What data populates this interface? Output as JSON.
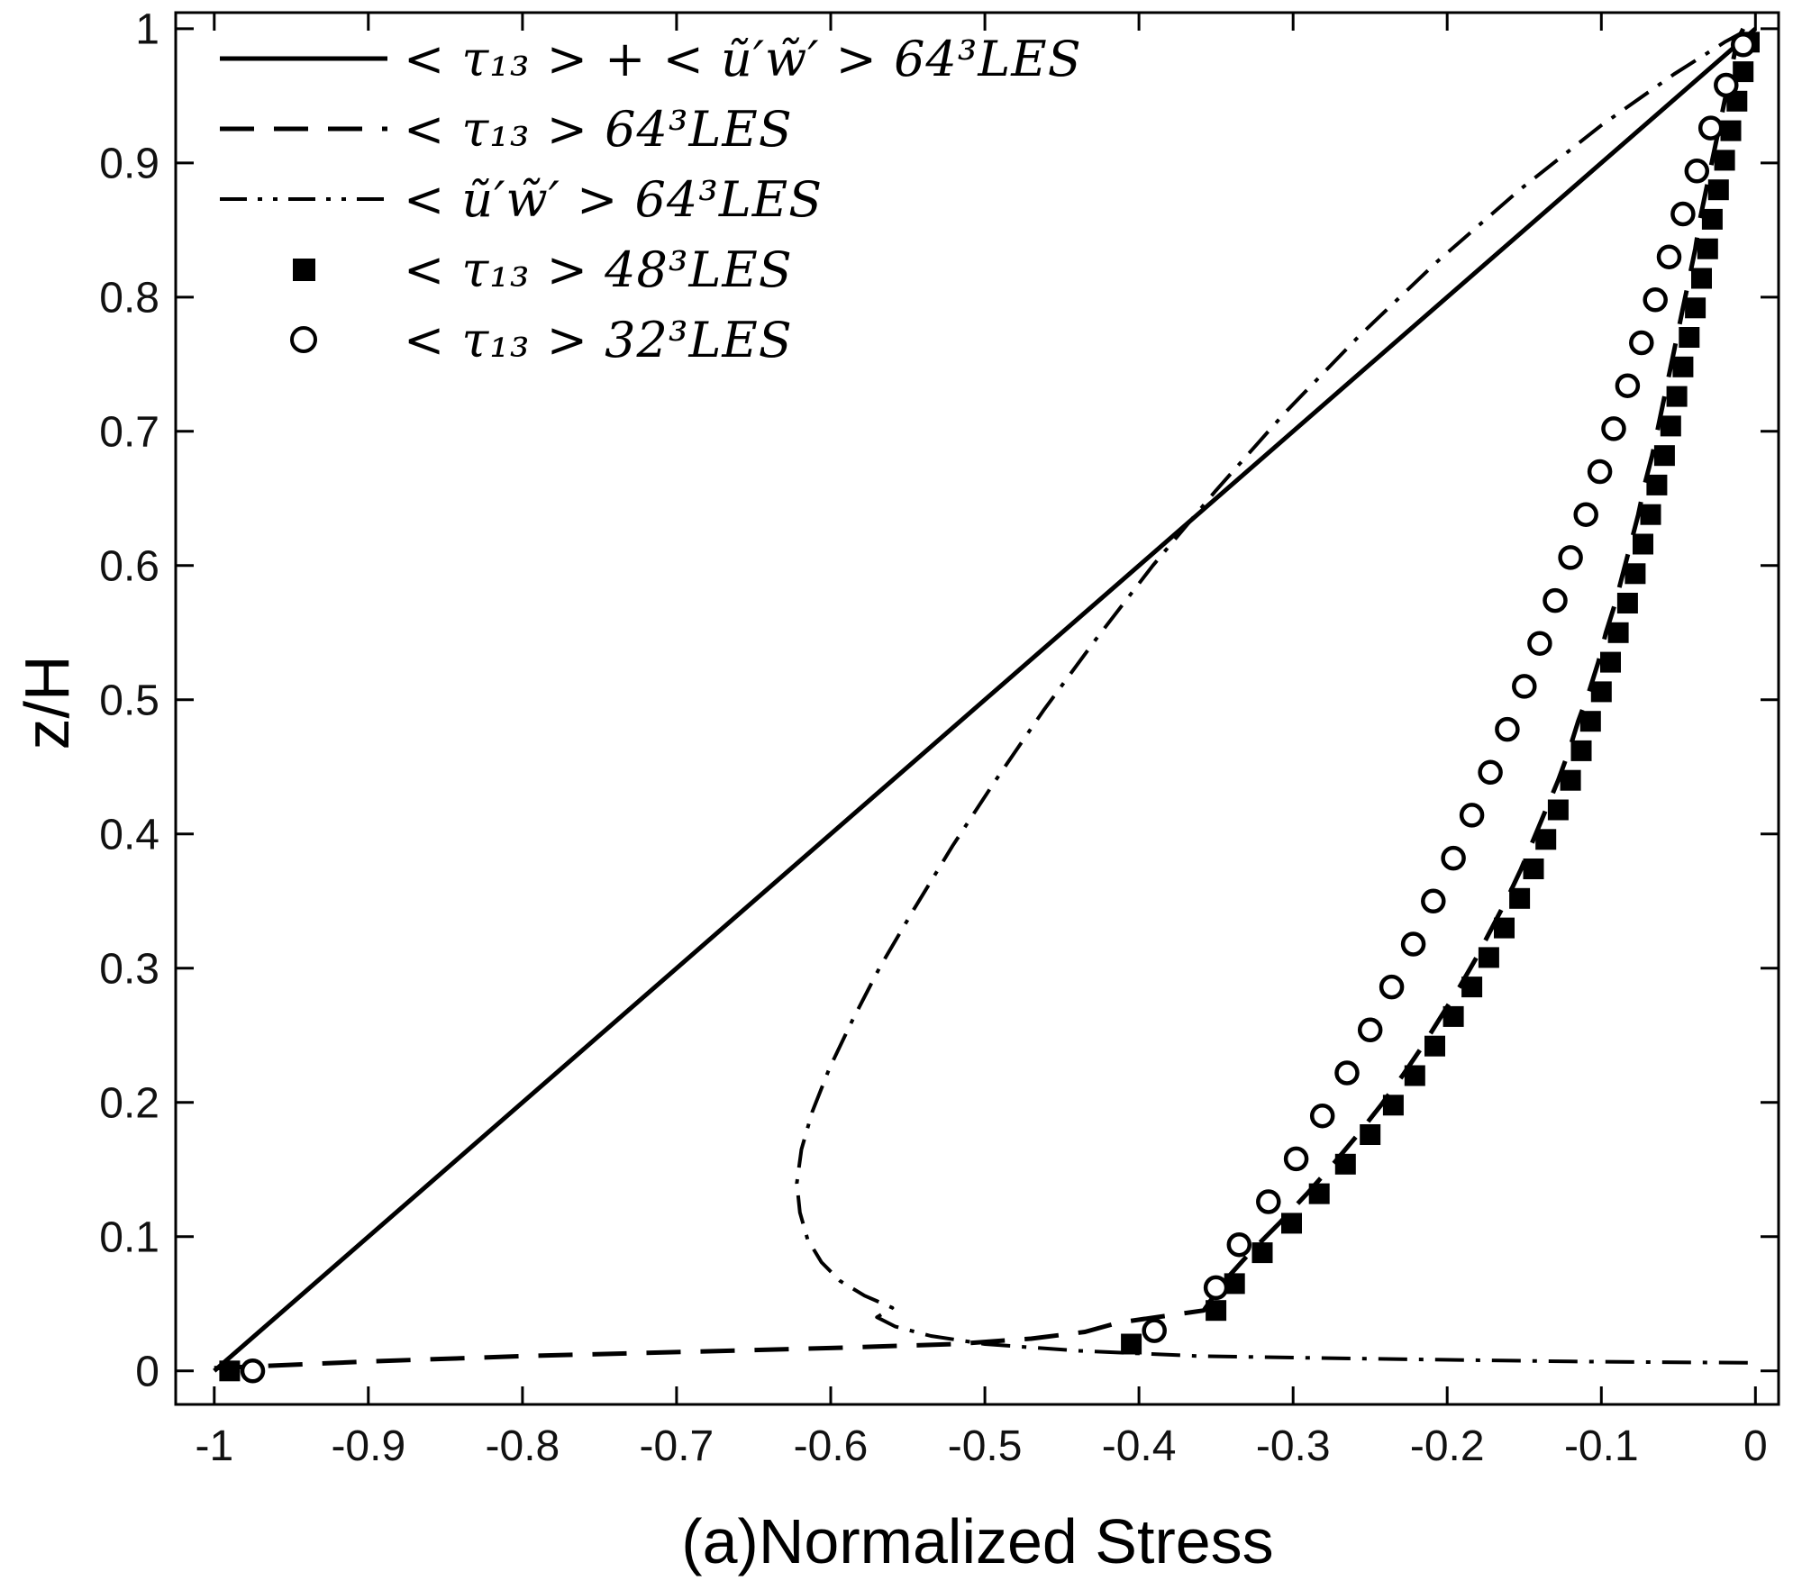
{
  "chart_data": {
    "type": "line",
    "title": "",
    "xlabel": "(a)Normalized Stress",
    "ylabel": "z/H",
    "xlim": [
      -1.025,
      0.015
    ],
    "ylim": [
      -0.025,
      1.012
    ],
    "grid": false,
    "legend_position": "top-left",
    "xticks": [
      -1,
      -0.9,
      -0.8,
      -0.7,
      -0.6,
      -0.5,
      -0.4,
      -0.3,
      -0.2,
      -0.1,
      0
    ],
    "xtick_labels": [
      "-1",
      "-0.9",
      "-0.8",
      "-0.7",
      "-0.6",
      "-0.5",
      "-0.4",
      "-0.3",
      "-0.2",
      "-0.1",
      "0"
    ],
    "yticks": [
      0,
      0.1,
      0.2,
      0.3,
      0.4,
      0.5,
      0.6,
      0.7,
      0.8,
      0.9,
      1
    ],
    "ytick_labels": [
      "0",
      "0.1",
      "0.2",
      "0.3",
      "0.4",
      "0.5",
      "0.6",
      "0.7",
      "0.8",
      "0.9",
      "1"
    ],
    "series": [
      {
        "name": "total-stress-64",
        "label": "< τ₁₃ > + < ũ′w̃′ > 64³LES",
        "style": "solid",
        "points": [
          [
            -1.0,
            0.0
          ],
          [
            -0.75,
            0.25
          ],
          [
            -0.5,
            0.5
          ],
          [
            -0.25,
            0.75
          ],
          [
            0.0,
            1.0
          ]
        ]
      },
      {
        "name": "sgs-stress-64",
        "label": "< τ₁₃ > 64³LES",
        "style": "dashed",
        "points": [
          [
            -1.0,
            0.002
          ],
          [
            -0.9,
            0.007
          ],
          [
            -0.8,
            0.011
          ],
          [
            -0.7,
            0.014
          ],
          [
            -0.6,
            0.017
          ],
          [
            -0.52,
            0.02
          ],
          [
            -0.47,
            0.024
          ],
          [
            -0.435,
            0.029
          ],
          [
            -0.413,
            0.036
          ],
          [
            -0.358,
            0.045
          ],
          [
            -0.346,
            0.065
          ],
          [
            -0.328,
            0.088
          ],
          [
            -0.309,
            0.11
          ],
          [
            -0.291,
            0.132
          ],
          [
            -0.274,
            0.154
          ],
          [
            -0.258,
            0.176
          ],
          [
            -0.243,
            0.198
          ],
          [
            -0.229,
            0.22
          ],
          [
            -0.216,
            0.242
          ],
          [
            -0.204,
            0.264
          ],
          [
            -0.192,
            0.286
          ],
          [
            -0.181,
            0.308
          ],
          [
            -0.171,
            0.33
          ],
          [
            -0.161,
            0.352
          ],
          [
            -0.152,
            0.374
          ],
          [
            -0.144,
            0.396
          ],
          [
            -0.136,
            0.418
          ],
          [
            -0.128,
            0.44
          ],
          [
            -0.121,
            0.462
          ],
          [
            -0.115,
            0.484
          ],
          [
            -0.108,
            0.506
          ],
          [
            -0.102,
            0.528
          ],
          [
            -0.097,
            0.55
          ],
          [
            -0.091,
            0.572
          ],
          [
            -0.086,
            0.594
          ],
          [
            -0.081,
            0.616
          ],
          [
            -0.076,
            0.638
          ],
          [
            -0.072,
            0.66
          ],
          [
            -0.067,
            0.682
          ],
          [
            -0.063,
            0.704
          ],
          [
            -0.059,
            0.726
          ],
          [
            -0.055,
            0.748
          ],
          [
            -0.051,
            0.77
          ],
          [
            -0.047,
            0.792
          ],
          [
            -0.043,
            0.814
          ],
          [
            -0.039,
            0.836
          ],
          [
            -0.036,
            0.858
          ],
          [
            -0.032,
            0.88
          ],
          [
            -0.028,
            0.902
          ],
          [
            -0.024,
            0.924
          ],
          [
            -0.02,
            0.946
          ],
          [
            -0.016,
            0.968
          ],
          [
            -0.012,
            0.99
          ],
          [
            -0.008,
            1.0
          ]
        ]
      },
      {
        "name": "resolved-stress-64",
        "label": "< ũ′w̃′ > 64³LES",
        "style": "dashdot",
        "points": [
          [
            -0.005,
            0.006
          ],
          [
            -0.12,
            0.007
          ],
          [
            -0.25,
            0.009
          ],
          [
            -0.36,
            0.011
          ],
          [
            -0.44,
            0.015
          ],
          [
            -0.5,
            0.02
          ],
          [
            -0.535,
            0.026
          ],
          [
            -0.558,
            0.033
          ],
          [
            -0.57,
            0.04
          ],
          [
            -0.56,
            0.047
          ],
          [
            -0.578,
            0.056
          ],
          [
            -0.594,
            0.067
          ],
          [
            -0.606,
            0.081
          ],
          [
            -0.615,
            0.098
          ],
          [
            -0.62,
            0.118
          ],
          [
            -0.622,
            0.14
          ],
          [
            -0.619,
            0.165
          ],
          [
            -0.612,
            0.193
          ],
          [
            -0.601,
            0.225
          ],
          [
            -0.586,
            0.261
          ],
          [
            -0.568,
            0.301
          ],
          [
            -0.546,
            0.344
          ],
          [
            -0.521,
            0.391
          ],
          [
            -0.493,
            0.44
          ],
          [
            -0.462,
            0.492
          ],
          [
            -0.428,
            0.545
          ],
          [
            -0.391,
            0.6
          ],
          [
            -0.35,
            0.656
          ],
          [
            -0.306,
            0.713
          ],
          [
            -0.258,
            0.77
          ],
          [
            -0.207,
            0.826
          ],
          [
            -0.153,
            0.88
          ],
          [
            -0.1,
            0.928
          ],
          [
            -0.053,
            0.966
          ],
          [
            -0.02,
            0.99
          ],
          [
            -0.004,
            1.0
          ]
        ]
      },
      {
        "name": "sgs-stress-48",
        "label": "< τ₁₃ > 48³LES",
        "style": "filled-square",
        "points": [
          [
            -0.99,
            0.0
          ],
          [
            -0.405,
            0.02
          ],
          [
            -0.35,
            0.045
          ],
          [
            -0.338,
            0.065
          ],
          [
            -0.32,
            0.088
          ],
          [
            -0.301,
            0.11
          ],
          [
            -0.283,
            0.132
          ],
          [
            -0.266,
            0.154
          ],
          [
            -0.25,
            0.176
          ],
          [
            -0.235,
            0.198
          ],
          [
            -0.221,
            0.22
          ],
          [
            -0.208,
            0.242
          ],
          [
            -0.196,
            0.264
          ],
          [
            -0.184,
            0.286
          ],
          [
            -0.173,
            0.308
          ],
          [
            -0.163,
            0.33
          ],
          [
            -0.153,
            0.352
          ],
          [
            -0.144,
            0.374
          ],
          [
            -0.136,
            0.396
          ],
          [
            -0.128,
            0.418
          ],
          [
            -0.12,
            0.44
          ],
          [
            -0.113,
            0.462
          ],
          [
            -0.107,
            0.484
          ],
          [
            -0.1,
            0.506
          ],
          [
            -0.094,
            0.528
          ],
          [
            -0.089,
            0.55
          ],
          [
            -0.083,
            0.572
          ],
          [
            -0.078,
            0.594
          ],
          [
            -0.073,
            0.616
          ],
          [
            -0.068,
            0.638
          ],
          [
            -0.064,
            0.66
          ],
          [
            -0.059,
            0.682
          ],
          [
            -0.055,
            0.704
          ],
          [
            -0.051,
            0.726
          ],
          [
            -0.047,
            0.748
          ],
          [
            -0.043,
            0.77
          ],
          [
            -0.039,
            0.792
          ],
          [
            -0.035,
            0.814
          ],
          [
            -0.031,
            0.836
          ],
          [
            -0.028,
            0.858
          ],
          [
            -0.024,
            0.88
          ],
          [
            -0.02,
            0.902
          ],
          [
            -0.016,
            0.924
          ],
          [
            -0.012,
            0.946
          ],
          [
            -0.008,
            0.968
          ],
          [
            -0.004,
            0.99
          ]
        ]
      },
      {
        "name": "sgs-stress-32",
        "label": "< τ₁₃ > 32³LES",
        "style": "open-circle",
        "points": [
          [
            -0.975,
            0.0
          ],
          [
            -0.39,
            0.03
          ],
          [
            -0.35,
            0.062
          ],
          [
            -0.335,
            0.094
          ],
          [
            -0.316,
            0.126
          ],
          [
            -0.298,
            0.158
          ],
          [
            -0.281,
            0.19
          ],
          [
            -0.265,
            0.222
          ],
          [
            -0.25,
            0.254
          ],
          [
            -0.236,
            0.286
          ],
          [
            -0.222,
            0.318
          ],
          [
            -0.209,
            0.35
          ],
          [
            -0.196,
            0.382
          ],
          [
            -0.184,
            0.414
          ],
          [
            -0.172,
            0.446
          ],
          [
            -0.161,
            0.478
          ],
          [
            -0.15,
            0.51
          ],
          [
            -0.14,
            0.542
          ],
          [
            -0.13,
            0.574
          ],
          [
            -0.12,
            0.606
          ],
          [
            -0.11,
            0.638
          ],
          [
            -0.101,
            0.67
          ],
          [
            -0.092,
            0.702
          ],
          [
            -0.083,
            0.734
          ],
          [
            -0.074,
            0.766
          ],
          [
            -0.065,
            0.798
          ],
          [
            -0.056,
            0.83
          ],
          [
            -0.047,
            0.862
          ],
          [
            -0.038,
            0.894
          ],
          [
            -0.029,
            0.926
          ],
          [
            -0.019,
            0.958
          ],
          [
            -0.008,
            0.988
          ]
        ]
      }
    ]
  }
}
